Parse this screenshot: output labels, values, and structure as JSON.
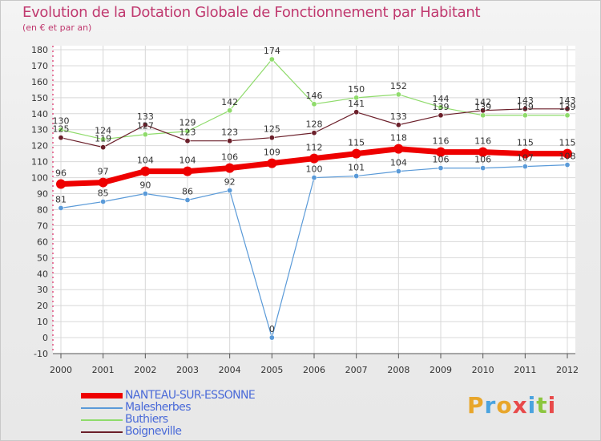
{
  "header": {
    "title": "Evolution de la Dotation Globale de Fonctionnement par Habitant",
    "subtitle": "(en € et par an)"
  },
  "brand": {
    "text": "Proxiti",
    "colors": [
      "#e8a62b",
      "#4aa3df",
      "#e8a62b",
      "#e84a4a",
      "#4aa3df",
      "#8cc63f",
      "#e84a4a"
    ]
  },
  "chart_data": {
    "type": "line",
    "title": "Evolution de la Dotation Globale de Fonctionnement par Habitant",
    "subtitle": "(en € et par an)",
    "xlabel": "",
    "ylabel": "",
    "x": [
      "2000",
      "2001",
      "2002",
      "2003",
      "2004",
      "2005",
      "2006",
      "2007",
      "2008",
      "2009",
      "2010",
      "2011",
      "2012"
    ],
    "ylim": [
      -10,
      180
    ],
    "yticks": [
      -10,
      0,
      10,
      20,
      30,
      40,
      50,
      60,
      70,
      80,
      90,
      100,
      110,
      120,
      130,
      140,
      150,
      160,
      170,
      180
    ],
    "grid": true,
    "series": [
      {
        "name": "Buthiers",
        "color": "#8fdb6b",
        "values": [
          130,
          124,
          127,
          129,
          142,
          174,
          146,
          150,
          152,
          144,
          139,
          139,
          139
        ]
      },
      {
        "name": "Boigneville",
        "color": "#6b1f2a",
        "values": [
          125,
          119,
          133,
          123,
          123,
          125,
          128,
          141,
          133,
          139,
          142,
          143,
          143
        ]
      },
      {
        "name": "Malesherbes",
        "color": "#5a9ad8",
        "values": [
          81,
          85,
          90,
          86,
          92,
          0,
          100,
          101,
          104,
          106,
          106,
          107,
          108
        ]
      },
      {
        "name": "NANTEAU-SUR-ESSONNE",
        "color": "#ee0000",
        "values": [
          96,
          97,
          104,
          104,
          106,
          109,
          112,
          115,
          118,
          116,
          116,
          115,
          115
        ]
      }
    ],
    "legend_order": [
      "NANTEAU-SUR-ESSONNE",
      "Malesherbes",
      "Buthiers",
      "Boigneville"
    ]
  }
}
